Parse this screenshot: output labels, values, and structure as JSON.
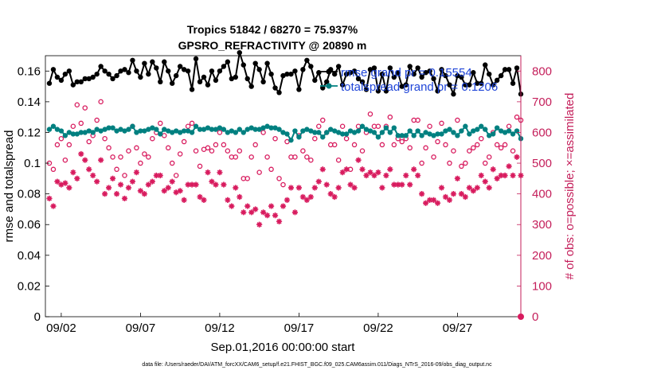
{
  "chart_data": {
    "type": "line",
    "title_line1": "Tropics 51842 / 68270 = 75.937%",
    "title_line2": "GPSRO_REFRACTIVITY @ 20890 m",
    "xlabel": "Sep.01,2016 00:00:00 start",
    "ylabel_left": "rmse and totalspread",
    "ylabel_right": "# of obs: o=possible; ×=assimilated",
    "footnote": "data file: /Users/raeder/DAI/ATM_forcXX/CAM6_setup/f.e21.FHIST_BGC.f09_025.CAM6assim.011/Diags_NTrS_2016-09/obs_diag_output.nc",
    "x_range_days": [
      0,
      30
    ],
    "x_ticks": [
      {
        "day": 1,
        "label": "09/02"
      },
      {
        "day": 6,
        "label": "09/07"
      },
      {
        "day": 11,
        "label": "09/12"
      },
      {
        "day": 16,
        "label": "09/17"
      },
      {
        "day": 21,
        "label": "09/22"
      },
      {
        "day": 26,
        "label": "09/27"
      }
    ],
    "ylim_left": [
      0,
      0.17
    ],
    "y_ticks_left": [
      "0",
      "0.02",
      "0.04",
      "0.06",
      "0.08",
      "0.1",
      "0.12",
      "0.14",
      "0.16"
    ],
    "ylim_right": [
      0,
      850
    ],
    "y_ticks_right": [
      "0",
      "100",
      "200",
      "300",
      "400",
      "500",
      "600",
      "700",
      "800"
    ],
    "legend": [
      "rmse grand pr = 0.15554",
      "totalspread grand pr = 0.1206"
    ],
    "colors": {
      "rmse": "#000000",
      "spread": "#008080",
      "obs": "#d81b5e",
      "axis_left": "#000000",
      "axis_right": "#c41e5a",
      "legend_text": "#1f45d8"
    },
    "x_days": [
      0.25,
      0.5,
      0.75,
      1.0,
      1.25,
      1.5,
      1.75,
      2.0,
      2.25,
      2.5,
      2.75,
      3.0,
      3.25,
      3.5,
      3.75,
      4.0,
      4.25,
      4.5,
      4.75,
      5.0,
      5.25,
      5.5,
      5.75,
      6.0,
      6.25,
      6.5,
      6.75,
      7.0,
      7.25,
      7.5,
      7.75,
      8.0,
      8.25,
      8.5,
      8.75,
      9.0,
      9.25,
      9.5,
      9.75,
      10.0,
      10.25,
      10.5,
      10.75,
      11.0,
      11.25,
      11.5,
      11.75,
      12.0,
      12.25,
      12.5,
      12.75,
      13.0,
      13.25,
      13.5,
      13.75,
      14.0,
      14.25,
      14.5,
      14.75,
      15.0,
      15.25,
      15.5,
      15.75,
      16.0,
      16.25,
      16.5,
      16.75,
      17.0,
      17.25,
      17.5,
      17.75,
      18.0,
      18.25,
      18.5,
      18.75,
      19.0,
      19.25,
      19.5,
      19.75,
      20.0,
      20.25,
      20.5,
      20.75,
      21.0,
      21.25,
      21.5,
      21.75,
      22.0,
      22.25,
      22.5,
      22.75,
      23.0,
      23.25,
      23.5,
      23.75,
      24.0,
      24.25,
      24.5,
      24.75,
      25.0,
      25.25,
      25.5,
      25.75,
      26.0,
      26.25,
      26.5,
      26.75,
      27.0,
      27.25,
      27.5,
      27.75,
      28.0,
      28.25,
      28.5,
      28.75,
      29.0,
      29.25,
      29.5,
      29.75,
      30.0
    ],
    "series": [
      {
        "name": "rmse",
        "values": [
          0.152,
          0.161,
          0.156,
          0.154,
          0.158,
          0.16,
          0.151,
          0.153,
          0.153,
          0.155,
          0.155,
          0.156,
          0.158,
          0.163,
          0.16,
          0.158,
          0.155,
          0.157,
          0.16,
          0.161,
          0.159,
          0.167,
          0.16,
          0.156,
          0.165,
          0.158,
          0.166,
          0.162,
          0.153,
          0.166,
          0.16,
          0.152,
          0.157,
          0.163,
          0.161,
          0.16,
          0.148,
          0.168,
          0.153,
          0.156,
          0.151,
          0.16,
          0.154,
          0.16,
          0.163,
          0.166,
          0.155,
          0.156,
          0.172,
          0.164,
          0.155,
          0.15,
          0.165,
          0.161,
          0.153,
          0.165,
          0.158,
          0.149,
          0.146,
          0.157,
          0.158,
          0.158,
          0.16,
          0.148,
          0.161,
          0.167,
          0.163,
          0.154,
          0.159,
          0.149,
          0.153,
          0.161,
          0.158,
          0.163,
          0.151,
          0.158,
          0.159,
          0.16,
          0.155,
          0.153,
          0.148,
          0.161,
          0.162,
          0.147,
          0.158,
          0.147,
          0.162,
          0.156,
          0.159,
          0.15,
          0.151,
          0.163,
          0.158,
          0.162,
          0.156,
          0.159,
          0.16,
          0.155,
          0.147,
          0.161,
          0.157,
          0.151,
          0.145,
          0.157,
          0.156,
          0.151,
          0.151,
          0.159,
          0.152,
          0.152,
          0.164,
          0.158,
          0.151,
          0.154,
          0.157,
          0.161,
          0.161,
          0.152,
          0.162,
          0.145
        ]
      },
      {
        "name": "totalspread",
        "values": [
          0.122,
          0.124,
          0.122,
          0.121,
          0.118,
          0.12,
          0.119,
          0.119,
          0.12,
          0.12,
          0.121,
          0.12,
          0.122,
          0.121,
          0.122,
          0.123,
          0.123,
          0.121,
          0.122,
          0.121,
          0.122,
          0.124,
          0.12,
          0.121,
          0.121,
          0.122,
          0.123,
          0.122,
          0.119,
          0.122,
          0.121,
          0.12,
          0.121,
          0.12,
          0.121,
          0.121,
          0.12,
          0.124,
          0.122,
          0.122,
          0.123,
          0.122,
          0.122,
          0.123,
          0.122,
          0.12,
          0.121,
          0.12,
          0.122,
          0.12,
          0.122,
          0.123,
          0.122,
          0.122,
          0.123,
          0.124,
          0.123,
          0.123,
          0.122,
          0.12,
          0.119,
          0.115,
          0.121,
          0.117,
          0.121,
          0.122,
          0.121,
          0.12,
          0.12,
          0.117,
          0.12,
          0.122,
          0.121,
          0.12,
          0.119,
          0.119,
          0.121,
          0.12,
          0.121,
          0.124,
          0.122,
          0.121,
          0.12,
          0.117,
          0.12,
          0.123,
          0.12,
          0.123,
          0.118,
          0.118,
          0.118,
          0.121,
          0.118,
          0.121,
          0.118,
          0.12,
          0.119,
          0.118,
          0.119,
          0.119,
          0.121,
          0.122,
          0.12,
          0.118,
          0.121,
          0.124,
          0.119,
          0.121,
          0.122,
          0.124,
          0.122,
          0.118,
          0.119,
          0.123,
          0.121,
          0.12,
          0.121,
          0.119,
          0.121,
          0.116
        ]
      },
      {
        "name": "obs_possible",
        "values": [
          500,
          480,
          560,
          580,
          510,
          560,
          620,
          690,
          630,
          680,
          570,
          590,
          640,
          700,
          580,
          550,
          520,
          480,
          520,
          460,
          540,
          620,
          550,
          500,
          530,
          520,
          580,
          600,
          630,
          590,
          550,
          500,
          460,
          530,
          570,
          620,
          630,
          540,
          490,
          545,
          550,
          540,
          560,
          600,
          560,
          540,
          520,
          520,
          540,
          450,
          450,
          520,
          560,
          470,
          600,
          520,
          480,
          580,
          450,
          430,
          570,
          520,
          520,
          590,
          540,
          520,
          510,
          580,
          620,
          640,
          600,
          560,
          560,
          510,
          620,
          580,
          480,
          560,
          620,
          540,
          600,
          660,
          620,
          620,
          560,
          620,
          650,
          560,
          580,
          570,
          580,
          550,
          640,
          640,
          500,
          550,
          620,
          520,
          570,
          630,
          560,
          500,
          540,
          640,
          490,
          500,
          540,
          550,
          560,
          580,
          500,
          520,
          600,
          560,
          550,
          560,
          620,
          540,
          650,
          640
        ]
      },
      {
        "name": "obs_assimilated",
        "values": [
          385,
          360,
          440,
          430,
          435,
          420,
          470,
          450,
          530,
          510,
          480,
          460,
          440,
          510,
          400,
          420,
          450,
          400,
          430,
          385,
          420,
          440,
          470,
          410,
          400,
          430,
          440,
          460,
          460,
          410,
          420,
          440,
          405,
          410,
          380,
          430,
          430,
          430,
          390,
          380,
          470,
          440,
          430,
          470,
          430,
          380,
          360,
          420,
          390,
          340,
          360,
          340,
          350,
          300,
          340,
          330,
          360,
          330,
          310,
          360,
          380,
          420,
          340,
          420,
          390,
          380,
          390,
          420,
          440,
          480,
          430,
          400,
          390,
          420,
          470,
          480,
          430,
          420,
          510,
          480,
          460,
          470,
          460,
          470,
          420,
          460,
          480,
          430,
          430,
          430,
          460,
          430,
          480,
          460,
          400,
          370,
          380,
          380,
          370,
          420,
          390,
          380,
          400,
          450,
          400,
          390,
          420,
          410,
          420,
          460,
          440,
          420,
          480,
          450,
          460,
          460,
          490,
          460,
          520,
          460
        ]
      }
    ]
  }
}
